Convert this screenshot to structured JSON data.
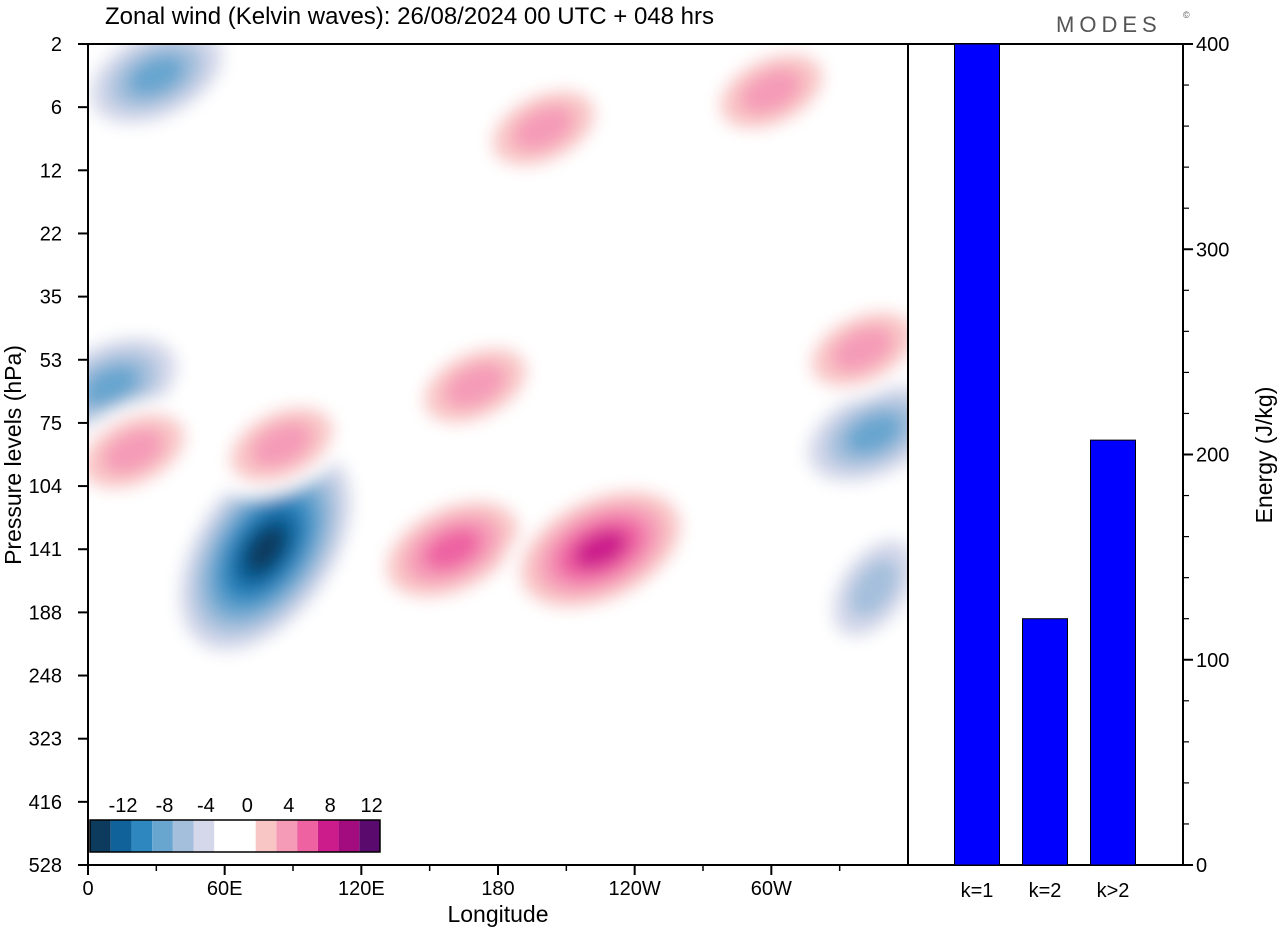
{
  "chart_data": [
    {
      "type": "heatmap",
      "title": "Zonal wind (Kelvin waves):  26/08/2024  00 UTC  + 048 hrs",
      "xlabel": "Longitude",
      "ylabel": "Pressure levels (hPa)",
      "x_ticks": [
        "0",
        "60E",
        "120E",
        "180",
        "120W",
        "60W"
      ],
      "x_tick_values": [
        0,
        60,
        120,
        180,
        240,
        300
      ],
      "xlim": [
        0,
        360
      ],
      "y_ticks": [
        "2",
        "6",
        "12",
        "22",
        "35",
        "53",
        "75",
        "104",
        "141",
        "188",
        "248",
        "323",
        "416",
        "528"
      ],
      "colorbar": {
        "tick_labels": [
          "-12",
          "-8",
          "-4",
          "0",
          "4",
          "8",
          "12"
        ],
        "colors": [
          "#0d3b5e",
          "#10629a",
          "#2e87bf",
          "#68a5cf",
          "#a4bfdc",
          "#d4d8ea",
          "#ffffff",
          "#ffffff",
          "#f9c6c6",
          "#f59bb7",
          "#ee62a2",
          "#cc1c8c",
          "#a30c7e",
          "#5a0a6d"
        ]
      },
      "features": [
        {
          "lon": 78,
          "level": 141,
          "value": -13
        },
        {
          "lon": 30,
          "level": 4,
          "value": -7
        },
        {
          "lon": 10,
          "level": 62,
          "value": -7
        },
        {
          "lon": 160,
          "level": 141,
          "value": 8
        },
        {
          "lon": 225,
          "level": 141,
          "value": 10
        },
        {
          "lon": 345,
          "level": 80,
          "value": -8
        },
        {
          "lon": 345,
          "level": 170,
          "value": -6
        },
        {
          "lon": 200,
          "level": 8,
          "value": 5
        },
        {
          "lon": 300,
          "level": 5,
          "value": 6
        },
        {
          "lon": 85,
          "level": 85,
          "value": 6
        },
        {
          "lon": 20,
          "level": 88,
          "value": 5
        },
        {
          "lon": 170,
          "level": 62,
          "value": 6
        },
        {
          "lon": 340,
          "level": 50,
          "value": 5
        }
      ]
    },
    {
      "type": "bar",
      "categories": [
        "k=1",
        "k=2",
        "k>2"
      ],
      "values": [
        400,
        120,
        207
      ],
      "ylabel": "Energy (J/kg)",
      "ylim": [
        0,
        400
      ],
      "y_ticks": [
        "0",
        "100",
        "200",
        "300",
        "400"
      ],
      "bar_color": "#0000ff"
    }
  ],
  "logo": "MODES",
  "logo_mark": "©"
}
